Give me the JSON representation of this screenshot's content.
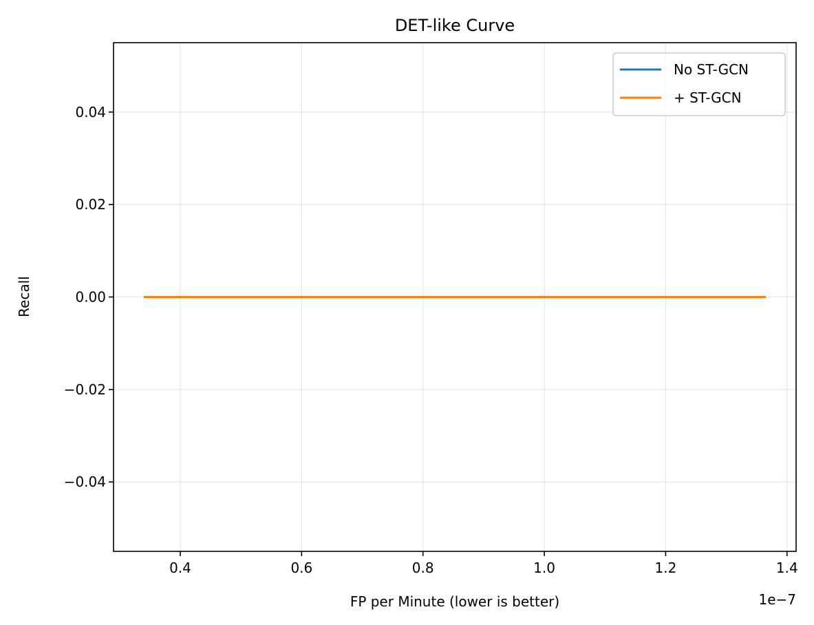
{
  "chart_data": {
    "type": "line",
    "title": "DET-like Curve",
    "xlabel": "FP per Minute (lower is better)",
    "ylabel": "Recall",
    "x_offset_text": "1e−7",
    "xlim": [
      0.29,
      1.415
    ],
    "ylim": [
      -0.055,
      0.055
    ],
    "x_ticks": [
      0.4,
      0.6,
      0.8,
      1.0,
      1.2,
      1.4
    ],
    "x_tick_labels": [
      "0.4",
      "0.6",
      "0.8",
      "1.0",
      "1.2",
      "1.4"
    ],
    "y_ticks": [
      -0.04,
      -0.02,
      0.0,
      0.02,
      0.04
    ],
    "y_tick_labels": [
      "−0.04",
      "−0.02",
      "0.00",
      "0.02",
      "0.04"
    ],
    "grid": true,
    "legend_position": "top-right",
    "series": [
      {
        "name": "No ST-GCN",
        "color": "#1f77b4",
        "x": [
          0.34,
          1.365
        ],
        "y": [
          0.0,
          0.0
        ]
      },
      {
        "name": "+ ST-GCN",
        "color": "#ff7f0e",
        "x": [
          0.34,
          1.365
        ],
        "y": [
          0.0,
          0.0
        ]
      }
    ]
  }
}
